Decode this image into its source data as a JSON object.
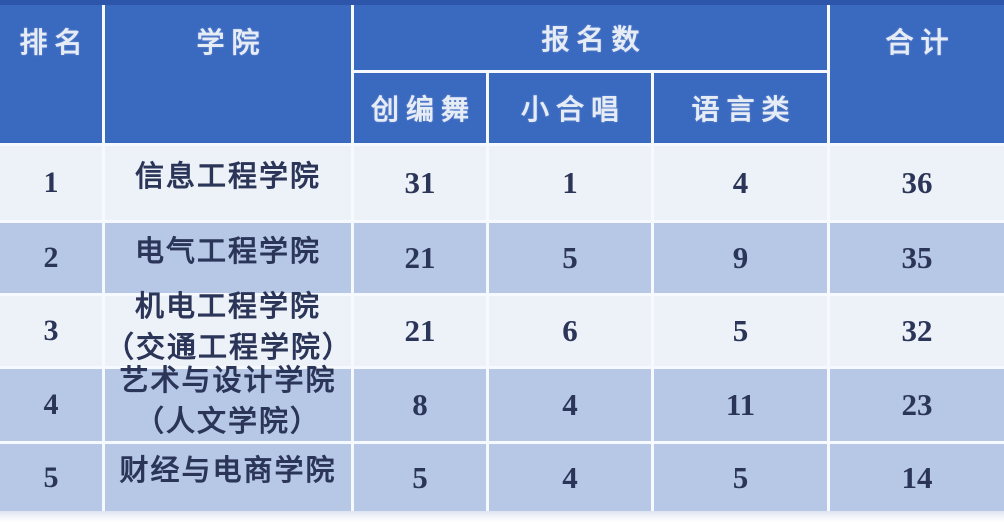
{
  "table": {
    "header": {
      "rank": "排名",
      "college": "学院",
      "signup_group": "报名数",
      "sub_dance": "创编舞",
      "sub_chorus": "小合唱",
      "sub_language": "语言类",
      "total": "合计"
    },
    "rows": [
      {
        "rank": "1",
        "college": "信息工程学院",
        "college_note": "",
        "dance": "31",
        "chorus": "1",
        "language": "4",
        "total": "36",
        "shade": "light"
      },
      {
        "rank": "2",
        "college": "电气工程学院",
        "college_note": "",
        "dance": "21",
        "chorus": "5",
        "language": "9",
        "total": "35",
        "shade": "blue"
      },
      {
        "rank": "3",
        "college": "机电工程学院",
        "college_note": "（交通工程学院）",
        "dance": "21",
        "chorus": "6",
        "language": "5",
        "total": "32",
        "shade": "light"
      },
      {
        "rank": "4",
        "college": "艺术与设计学院",
        "college_note": "（人文学院）",
        "dance": "8",
        "chorus": "4",
        "language": "11",
        "total": "23",
        "shade": "blue"
      },
      {
        "rank": "5",
        "college": "财经与电商学院",
        "college_note": "",
        "dance": "5",
        "chorus": "4",
        "language": "5",
        "total": "14",
        "shade": "blue"
      }
    ]
  },
  "chart_data": {
    "type": "table",
    "title": "",
    "column_groups": [
      {
        "label": "报名数",
        "children": [
          "创编舞",
          "小合唱",
          "语言类"
        ]
      }
    ],
    "columns": [
      "排名",
      "学院",
      "创编舞",
      "小合唱",
      "语言类",
      "合计"
    ],
    "rows": [
      [
        "1",
        "信息工程学院",
        31,
        1,
        4,
        36
      ],
      [
        "2",
        "电气工程学院",
        21,
        5,
        9,
        35
      ],
      [
        "3",
        "机电工程学院（交通工程学院）",
        21,
        6,
        5,
        32
      ],
      [
        "4",
        "艺术与设计学院（人文学院）",
        8,
        4,
        11,
        23
      ],
      [
        "5",
        "财经与电商学院",
        5,
        4,
        5,
        14
      ]
    ]
  },
  "colors": {
    "header_bg": "#3a69c0",
    "header_top_edge": "#2d55a9",
    "header_text": "#e6ecf6",
    "row_light": "#edf1f8",
    "row_blue": "#b7c7e6",
    "cell_text": "#2b3558",
    "gridline": "#f6f9fd"
  }
}
